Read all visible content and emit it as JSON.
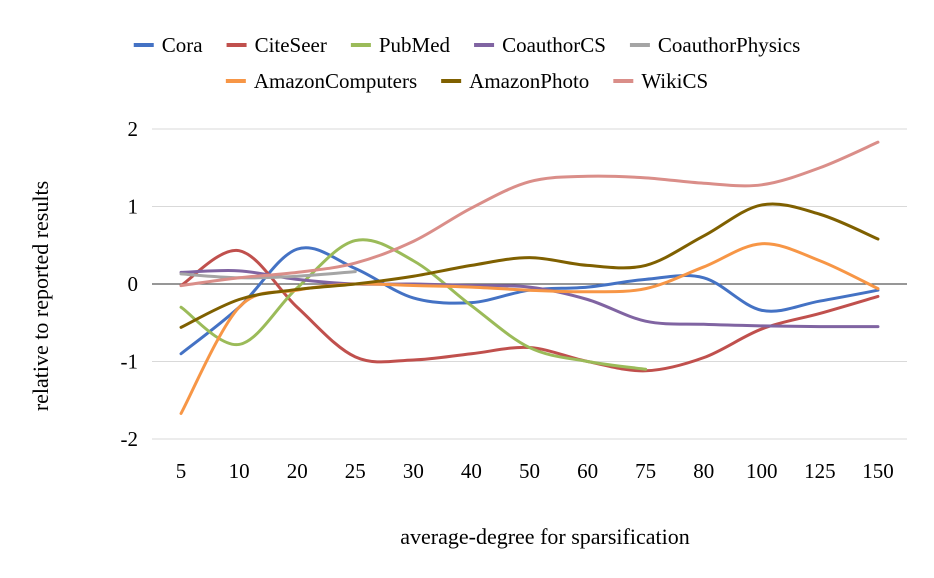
{
  "chart_data": {
    "type": "line",
    "title": "",
    "xlabel": "average-degree for sparsification",
    "ylabel": "relative to reported results",
    "ylim": [
      -2,
      2
    ],
    "yticks": [
      2,
      1,
      0,
      -1,
      -2
    ],
    "categories": [
      "5",
      "10",
      "20",
      "25",
      "30",
      "40",
      "50",
      "60",
      "75",
      "80",
      "100",
      "125",
      "150"
    ],
    "legend_position": "top",
    "grid": true,
    "series": [
      {
        "name": "Cora",
        "color": "#4472c4",
        "values": [
          -0.9,
          -0.3,
          0.45,
          0.2,
          -0.18,
          -0.24,
          -0.08,
          -0.04,
          0.06,
          0.08,
          -0.34,
          -0.22,
          -0.08
        ]
      },
      {
        "name": "CiteSeer",
        "color": "#c0504d",
        "values": [
          -0.02,
          0.43,
          -0.3,
          -0.94,
          -0.98,
          -0.9,
          -0.82,
          -1.0,
          -1.12,
          -0.95,
          -0.58,
          -0.38,
          -0.16
        ]
      },
      {
        "name": "PubMed",
        "color": "#9bbb59",
        "values": [
          -0.3,
          -0.78,
          -0.05,
          0.56,
          0.3,
          -0.28,
          -0.82,
          -1.0,
          -1.1,
          null,
          null,
          null,
          null
        ]
      },
      {
        "name": "CoauthorCS",
        "color": "#8064a2",
        "values": [
          0.15,
          0.17,
          0.06,
          0.0,
          0.0,
          -0.02,
          -0.04,
          -0.2,
          -0.48,
          -0.52,
          -0.54,
          -0.55,
          -0.55
        ]
      },
      {
        "name": "CoauthorPhysics",
        "color": "#a5a5a5",
        "values": [
          0.13,
          0.08,
          0.1,
          0.16,
          null,
          null,
          null,
          null,
          null,
          null,
          null,
          null,
          null
        ]
      },
      {
        "name": "AmazonComputers",
        "color": "#f79646",
        "values": [
          -1.67,
          -0.3,
          -0.08,
          0.0,
          -0.02,
          -0.04,
          -0.08,
          -0.1,
          -0.06,
          0.22,
          0.52,
          0.3,
          -0.06
        ]
      },
      {
        "name": "AmazonPhoto",
        "color": "#7f6000",
        "values": [
          -0.56,
          -0.2,
          -0.07,
          0.0,
          0.1,
          0.24,
          0.34,
          0.24,
          0.24,
          0.62,
          1.02,
          0.9,
          0.58
        ]
      },
      {
        "name": "WikiCS",
        "color": "#da8e89",
        "values": [
          -0.02,
          0.08,
          0.15,
          0.27,
          0.55,
          0.98,
          1.32,
          1.39,
          1.37,
          1.3,
          1.28,
          1.5,
          1.83
        ]
      }
    ]
  }
}
